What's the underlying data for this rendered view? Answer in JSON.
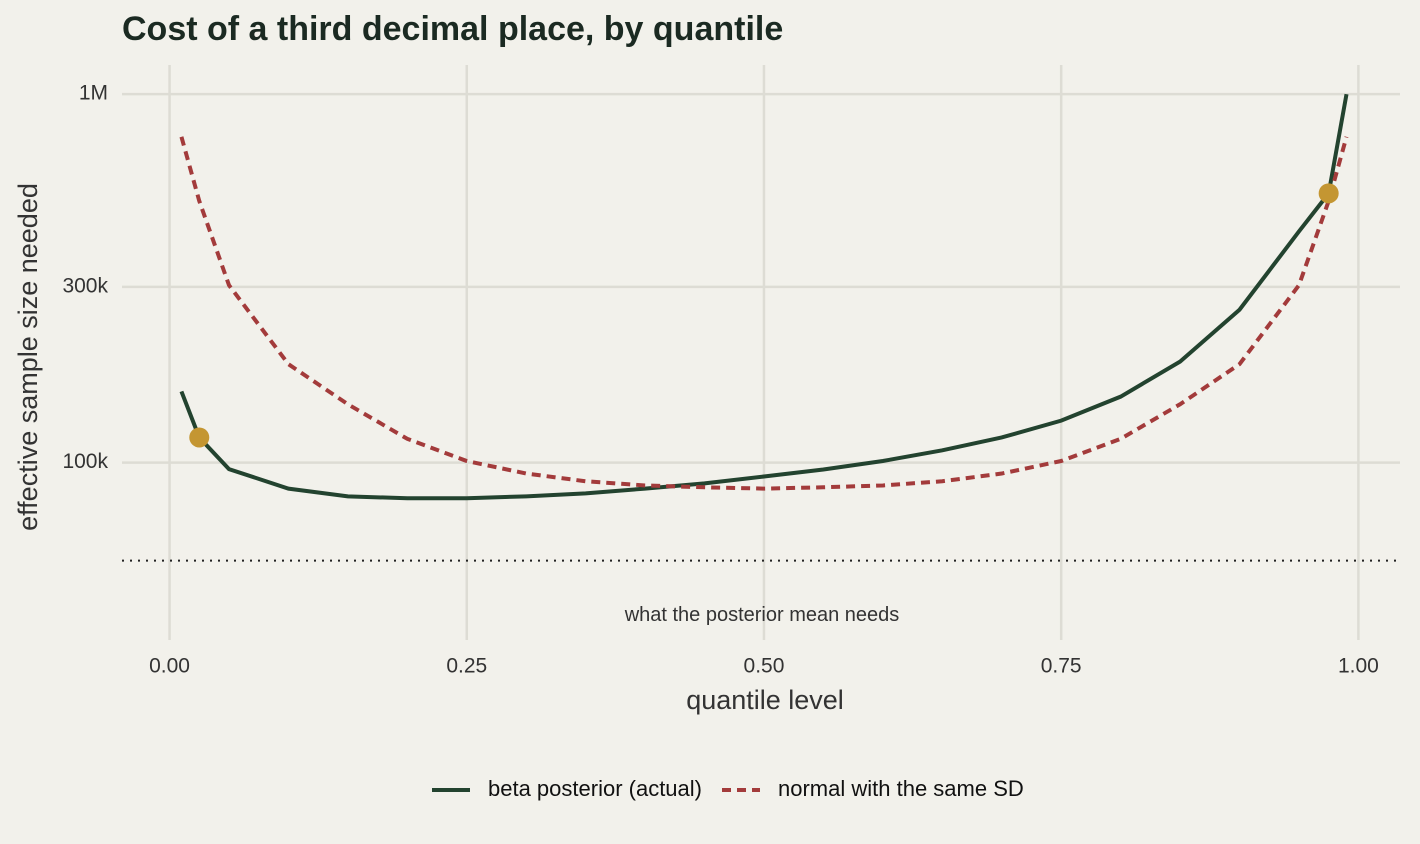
{
  "chart_data": {
    "type": "line",
    "title": "Cost of a third decimal place, by quantile",
    "x_label": "quantile level",
    "y_label": "effective sample size needed",
    "log_y": true,
    "grid": true,
    "legend_position": "bottom",
    "xlim": [
      -0.04,
      1.035
    ],
    "ylim": [
      33000,
      1200000
    ],
    "xticks": [
      {
        "value": 0,
        "label": "0.00"
      },
      {
        "value": 0.25,
        "label": "0.25"
      },
      {
        "value": 0.5,
        "label": "0.50"
      },
      {
        "value": 0.75,
        "label": "0.75"
      },
      {
        "value": 1,
        "label": "1.00"
      }
    ],
    "yticks": [
      {
        "value": 100000,
        "label": "100k"
      },
      {
        "value": 300000,
        "label": "300k"
      },
      {
        "value": 1000000,
        "label": "1M"
      }
    ],
    "series": [
      {
        "name": "beta posterior (actual)",
        "color": "#23432f",
        "dash": "solid",
        "x": [
          0.01,
          0.025,
          0.05,
          0.1,
          0.15,
          0.2,
          0.25,
          0.3,
          0.35,
          0.4,
          0.45,
          0.5,
          0.55,
          0.6,
          0.65,
          0.7,
          0.75,
          0.8,
          0.85,
          0.9,
          0.95,
          0.975,
          0.99
        ],
        "values": [
          156000,
          117000,
          96000,
          85000,
          81000,
          80000,
          80000,
          81000,
          82500,
          85000,
          87800,
          91700,
          95800,
          101000,
          108000,
          117000,
          130000,
          151000,
          188000,
          260000,
          424000,
          538000,
          1000000
        ]
      },
      {
        "name": "normal with the same SD",
        "color": "#a33b3b",
        "dash": "dashed",
        "x": [
          0.01,
          0.025,
          0.05,
          0.1,
          0.15,
          0.2,
          0.25,
          0.3,
          0.35,
          0.4,
          0.45,
          0.5,
          0.55,
          0.6,
          0.65,
          0.7,
          0.75,
          0.8,
          0.85,
          0.9,
          0.95,
          0.975,
          0.99
        ],
        "values": [
          766000,
          513000,
          303000,
          185000,
          144000,
          116000,
          101000,
          93400,
          89000,
          86700,
          85700,
          85000,
          85700,
          86700,
          89000,
          93400,
          101000,
          116000,
          144000,
          185000,
          303000,
          513000,
          766000
        ]
      }
    ],
    "points": {
      "color": "#c49632",
      "x": [
        0.025,
        0.975
      ],
      "values": [
        117000,
        538000
      ]
    },
    "reference_line": {
      "value": 54200,
      "label": "what the posterior mean needs"
    }
  }
}
